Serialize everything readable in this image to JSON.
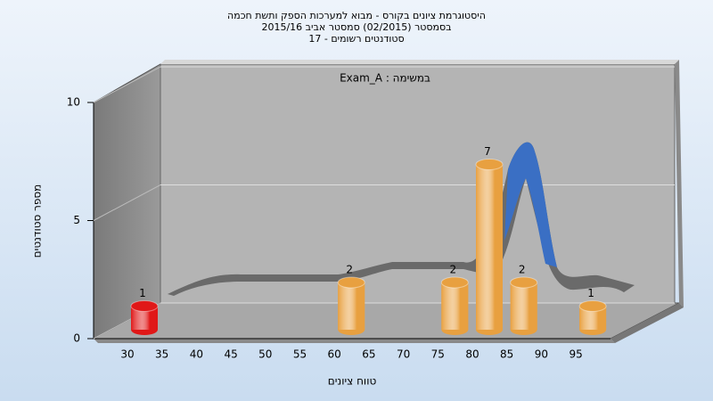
{
  "chart_data": {
    "type": "bar3d",
    "title_lines": [
      "היסטוגרמת ציונים בקורס - מבוא למערכות הספק ותשת חכמה",
      "בסמסטר  (02/2015)  סמסטר אביב 2015/16",
      "סטודנטים רשומים - 17"
    ],
    "annotation": "Exam_A : במשימה",
    "x_label": "טווח ציונים",
    "y_label": "מספר סטודנטים",
    "categories": [
      "30",
      "35",
      "40",
      "45",
      "50",
      "55",
      "60",
      "65",
      "70",
      "75",
      "80",
      "85",
      "90",
      "95"
    ],
    "values": [
      1,
      0,
      0,
      0,
      0,
      0,
      2,
      0,
      0,
      2,
      7,
      2,
      0,
      1
    ],
    "colors": [
      "#e01818",
      "#e8a040",
      "#e8a040",
      "#e8a040",
      "#e8a040",
      "#e8a040",
      "#e8a040",
      "#e8a040",
      "#e8a040",
      "#e8a040",
      "#e8a040",
      "#e8a040",
      "#e8a040",
      "#e8a040"
    ],
    "ylim": [
      0,
      10
    ],
    "yticks": [
      0,
      5,
      10
    ],
    "grid": true
  }
}
